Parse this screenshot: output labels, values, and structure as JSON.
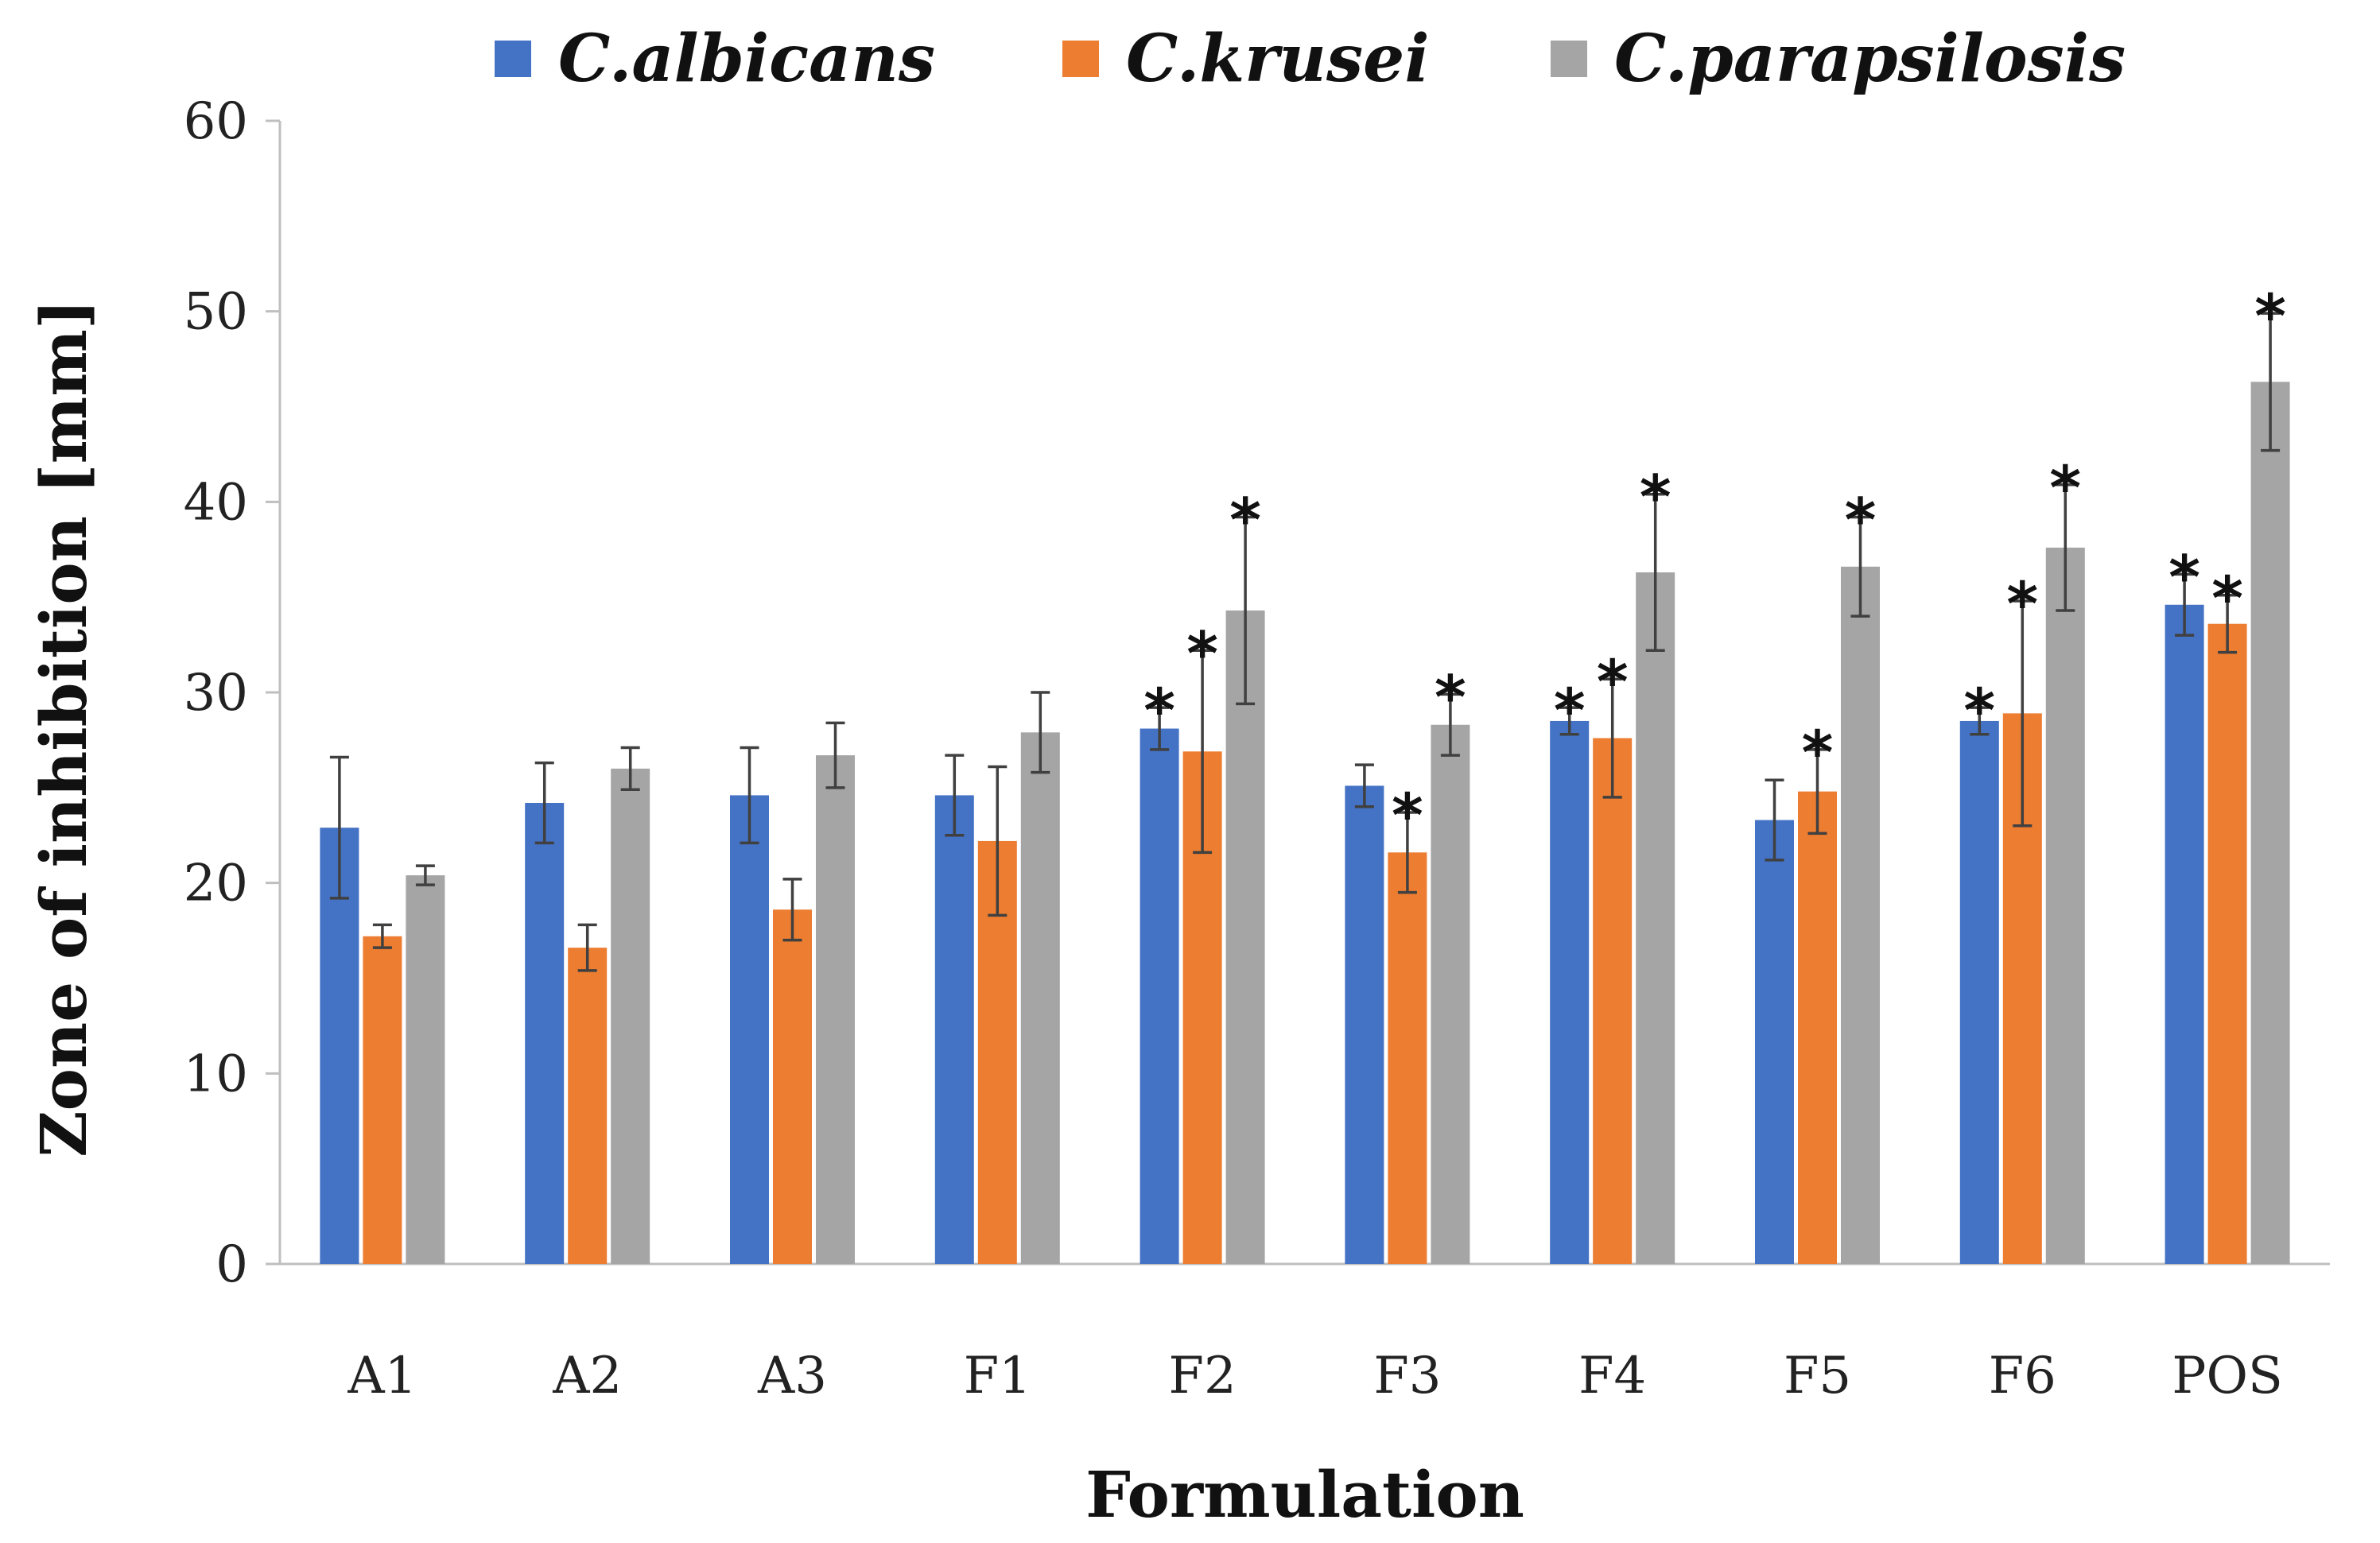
{
  "chart_data": {
    "type": "bar",
    "title": "",
    "xlabel": "Formulation",
    "ylabel": "Zone of inhibition  [mm]",
    "ylim": [
      0,
      60
    ],
    "yticks": [
      0,
      10,
      20,
      30,
      40,
      50,
      60
    ],
    "grid": false,
    "legend_position": "top",
    "categories": [
      "A1",
      "A2",
      "A3",
      "F1",
      "F2",
      "F3",
      "F4",
      "F5",
      "F6",
      "POS"
    ],
    "series": [
      {
        "name": "C.albicans",
        "color": "#4472C4",
        "values": [
          22.9,
          24.2,
          24.6,
          24.6,
          28.1,
          25.1,
          28.5,
          23.3,
          28.5,
          34.6
        ],
        "errors": [
          3.7,
          2.1,
          2.5,
          2.1,
          1.1,
          1.1,
          0.7,
          2.1,
          0.7,
          1.6
        ],
        "significant": [
          false,
          false,
          false,
          false,
          true,
          false,
          true,
          false,
          true,
          true
        ],
        "annotation": "*"
      },
      {
        "name": "C.krusei",
        "color": "#ED7D31",
        "values": [
          17.2,
          16.6,
          18.6,
          22.2,
          26.9,
          21.6,
          27.6,
          24.8,
          28.9,
          33.6
        ],
        "errors": [
          0.6,
          1.2,
          1.6,
          3.9,
          5.3,
          2.1,
          3.1,
          2.2,
          5.9,
          1.5
        ],
        "significant": [
          false,
          false,
          false,
          false,
          true,
          true,
          true,
          true,
          true,
          true
        ],
        "annotation": "*"
      },
      {
        "name": "C.parapsilosis",
        "color": "#A5A5A5",
        "values": [
          20.4,
          26.0,
          26.7,
          27.9,
          34.3,
          28.3,
          36.3,
          36.6,
          37.6,
          46.3
        ],
        "errors": [
          0.5,
          1.1,
          1.7,
          2.1,
          4.9,
          1.6,
          4.1,
          2.6,
          3.3,
          3.6
        ],
        "significant": [
          false,
          false,
          false,
          false,
          true,
          true,
          true,
          true,
          true,
          true
        ],
        "annotation": "*"
      }
    ]
  }
}
